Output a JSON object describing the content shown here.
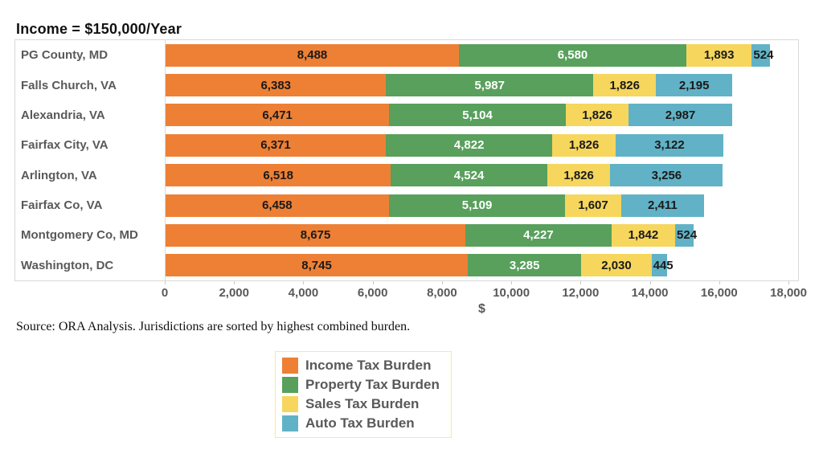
{
  "title": "Income = $150,000/Year",
  "source_note": "Source: ORA Analysis. Jurisdictions are sorted by highest combined burden.",
  "colors": {
    "income": "#ED8035",
    "property": "#58A05C",
    "sales": "#F6D65C",
    "auto": "#61B2C6",
    "frame_border": "#d9d9d9",
    "label_gray": "#595959",
    "legend_border": "#f0ef8a"
  },
  "chart_data": {
    "type": "bar",
    "orientation": "horizontal",
    "stacked": true,
    "title": "Income = $150,000/Year",
    "xlabel": "$",
    "ylabel": "",
    "axis_max_display": 18000,
    "axis_max_padded": 18300,
    "grid": false,
    "legend_position": "bottom",
    "categories": [
      "PG County, MD",
      "Falls Church, VA",
      "Alexandria, VA",
      "Fairfax City, VA",
      "Arlington, VA",
      "Fairfax Co, VA",
      "Montgomery Co, MD",
      "Washington, DC"
    ],
    "series": [
      {
        "name": "Income Tax Burden",
        "color": "#ED8035",
        "label_color": "#1a1a1a",
        "values": [
          8488,
          6383,
          6471,
          6371,
          6518,
          6458,
          8675,
          8745
        ],
        "labels": [
          "8,488",
          "6,383",
          "6,471",
          "6,371",
          "6,518",
          "6,458",
          "8,675",
          "8,745"
        ]
      },
      {
        "name": "Property Tax Burden",
        "color": "#58A05C",
        "label_color": "#ffffff",
        "values": [
          6580,
          5987,
          5104,
          4822,
          4524,
          5109,
          4227,
          3285
        ],
        "labels": [
          "6,580",
          "5,987",
          "5,104",
          "4,822",
          "4,524",
          "5,109",
          "4,227",
          "3,285"
        ]
      },
      {
        "name": "Sales Tax Burden",
        "color": "#F6D65C",
        "label_color": "#1a1a1a",
        "values": [
          1893,
          1826,
          1826,
          1826,
          1826,
          1607,
          1842,
          2030
        ],
        "labels": [
          "1,893",
          "1,826",
          "1,826",
          "1,826",
          "1,826",
          "1,607",
          "1,842",
          "2,030"
        ]
      },
      {
        "name": "Auto Tax Burden",
        "color": "#61B2C6",
        "label_color": "#1a1a1a",
        "values": [
          524,
          2195,
          2987,
          3122,
          3256,
          2411,
          524,
          445
        ],
        "labels": [
          "524",
          "2,195",
          "2,987",
          "3,122",
          "3,256",
          "2,411",
          "524",
          "445"
        ]
      }
    ],
    "totals": [
      17485,
      16391,
      16388,
      16141,
      16124,
      15585,
      15268,
      14505
    ],
    "x_ticks": [
      0,
      2000,
      4000,
      6000,
      8000,
      10000,
      12000,
      14000,
      16000,
      18000
    ],
    "x_tick_labels": [
      "0",
      "2,000",
      "4,000",
      "6,000",
      "8,000",
      "10,000",
      "12,000",
      "14,000",
      "16,000",
      "18,000"
    ]
  },
  "legend": {
    "items": [
      {
        "label": "Income Tax Burden",
        "color": "#ED8035"
      },
      {
        "label": "Property Tax Burden",
        "color": "#58A05C"
      },
      {
        "label": "Sales Tax Burden",
        "color": "#F6D65C"
      },
      {
        "label": "Auto Tax Burden",
        "color": "#61B2C6"
      }
    ]
  }
}
